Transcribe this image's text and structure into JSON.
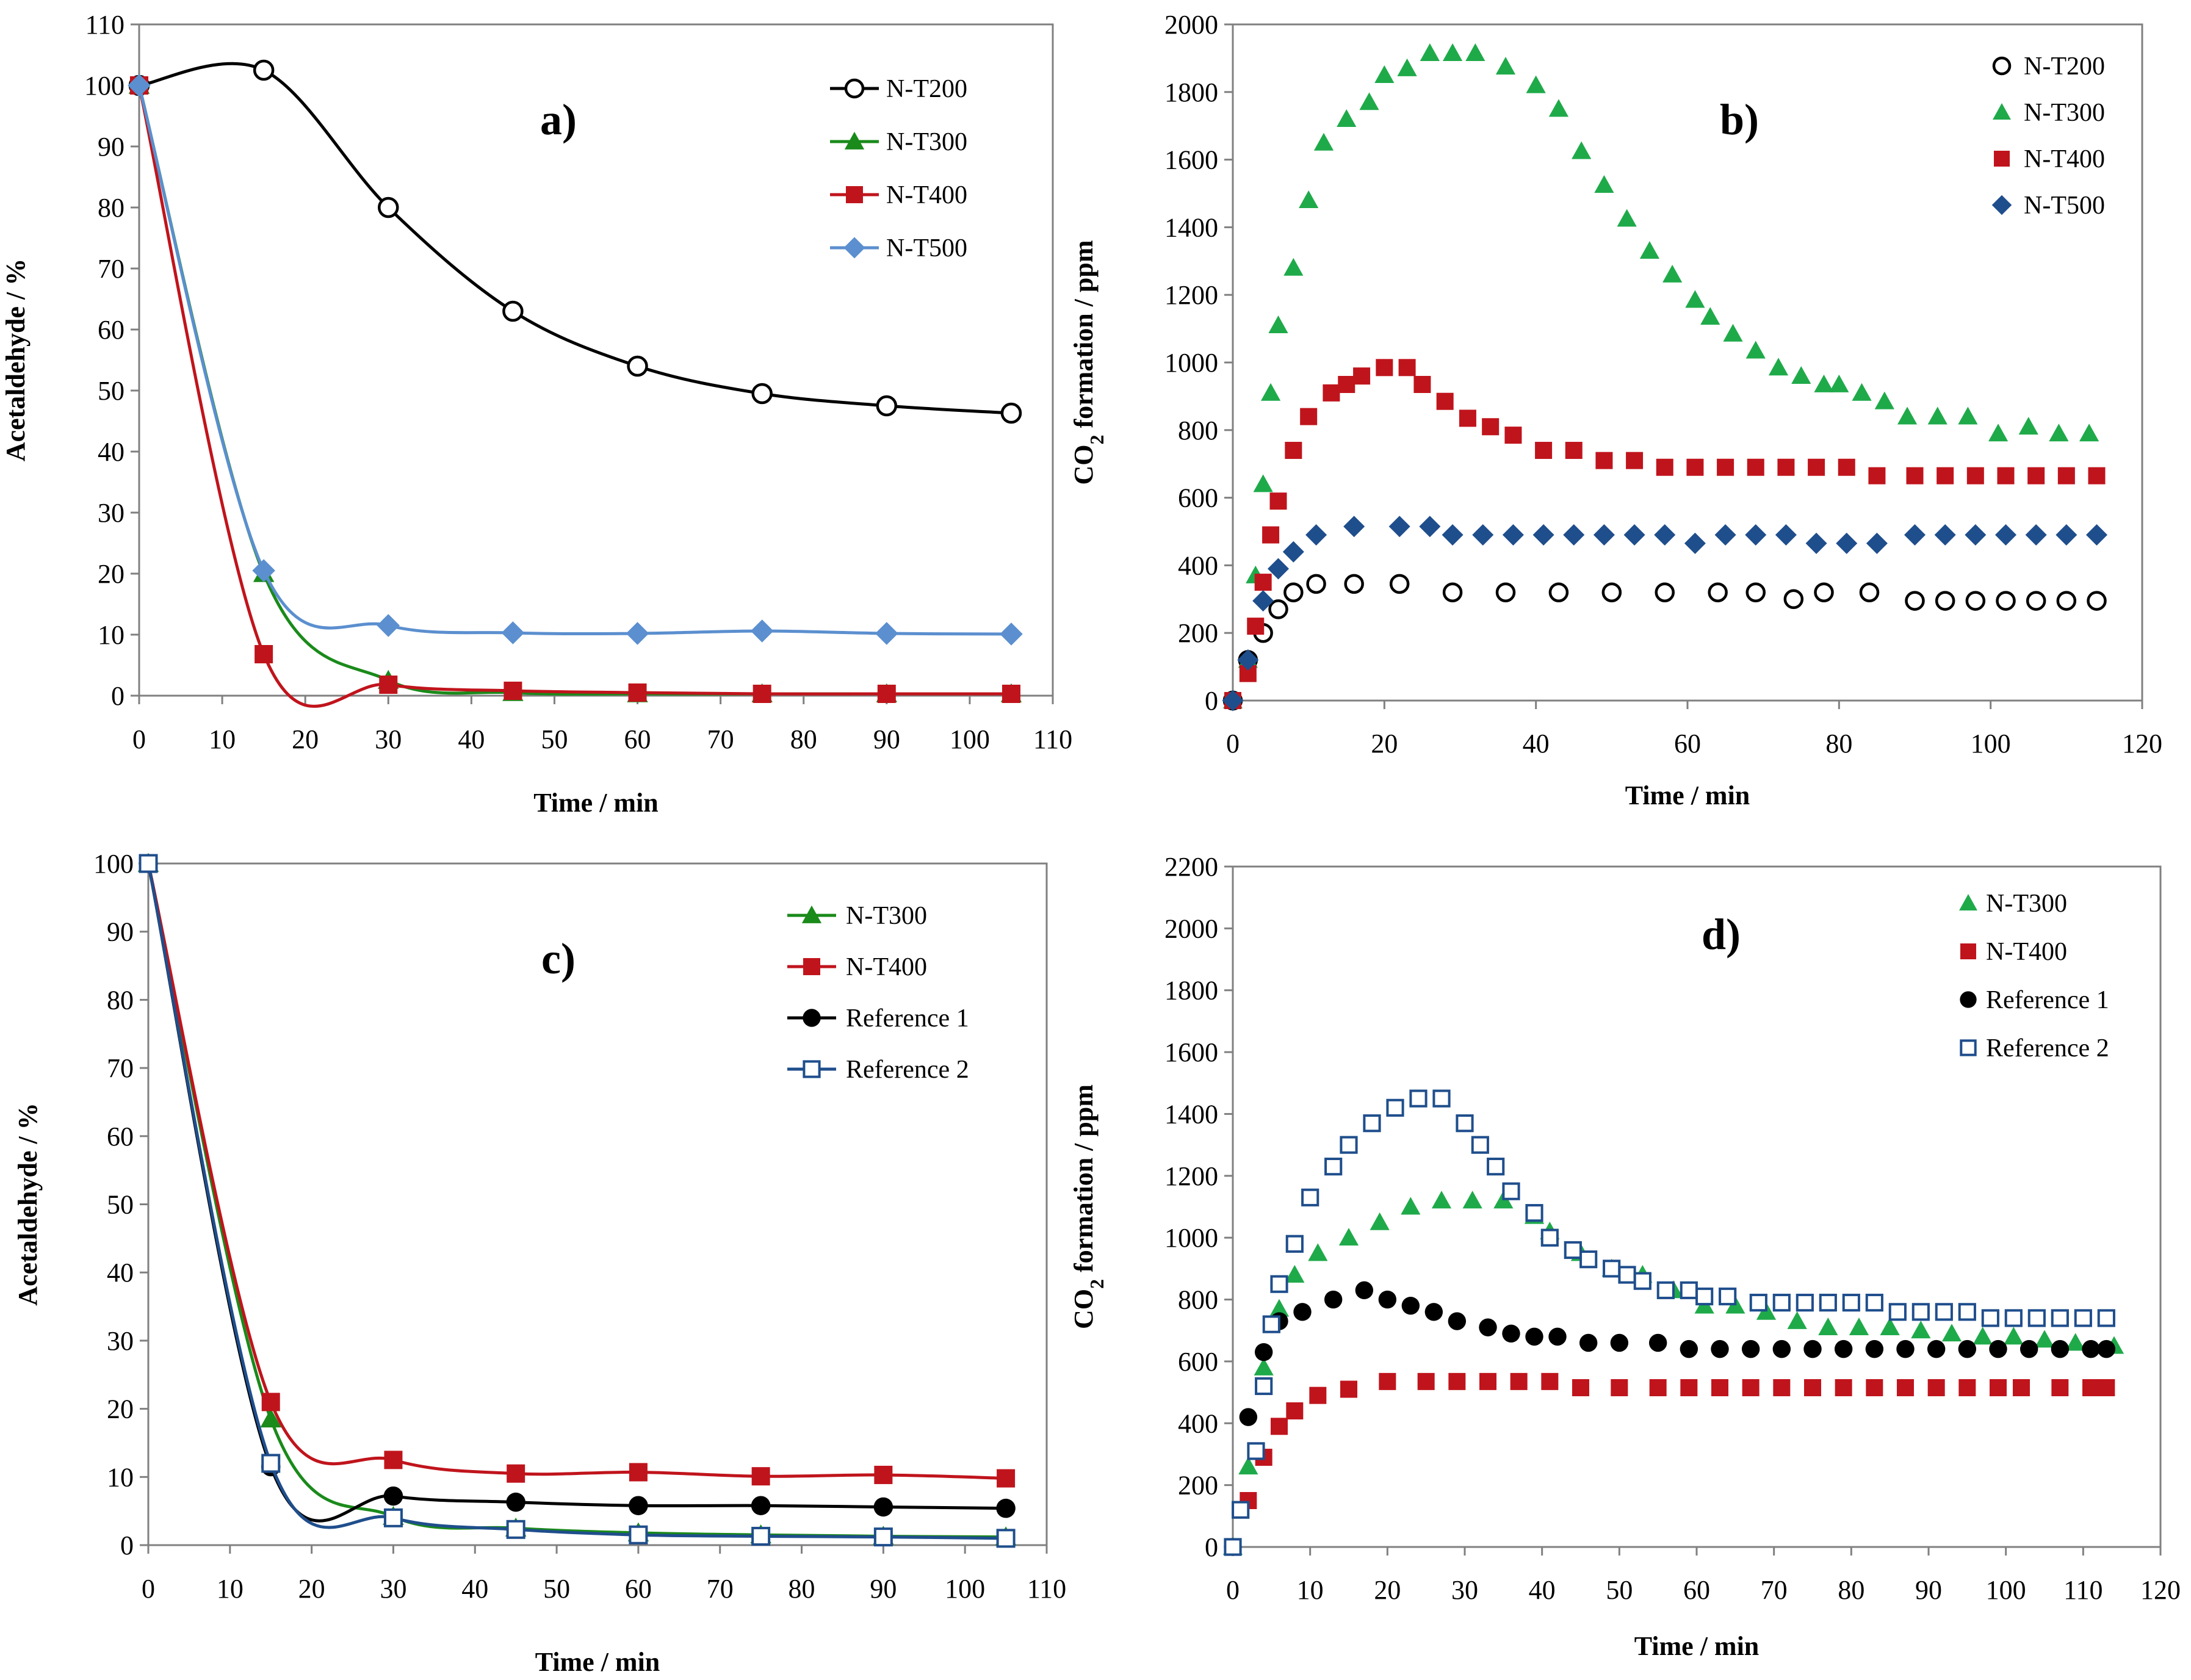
{
  "chart_data": [
    {
      "id": "a",
      "type": "line",
      "panel_label": "a)",
      "xlabel": "Time / min",
      "ylabel": "Acetaldehyde / %",
      "xlim": [
        0,
        110
      ],
      "ylim": [
        0,
        110
      ],
      "xticks": [
        0,
        10,
        20,
        30,
        40,
        50,
        60,
        70,
        80,
        90,
        100,
        110
      ],
      "yticks": [
        0,
        10,
        20,
        30,
        40,
        50,
        60,
        70,
        80,
        90,
        100,
        110
      ],
      "smooth": true,
      "legend_position": "top-right",
      "series": [
        {
          "name": "N-T200",
          "marker": "circle-open",
          "color": "#000000",
          "x": [
            0,
            15,
            30,
            45,
            60,
            75,
            90,
            105
          ],
          "y": [
            100,
            102.5,
            80,
            63,
            54,
            49.5,
            47.5,
            46.3
          ]
        },
        {
          "name": "N-T300",
          "marker": "triangle",
          "color": "#1a8a1a",
          "x": [
            0,
            15,
            30,
            45,
            60,
            75,
            90,
            105
          ],
          "y": [
            100,
            20,
            2.5,
            0.5,
            0.3,
            0.3,
            0.3,
            0.3
          ]
        },
        {
          "name": "N-T400",
          "marker": "square",
          "color": "#c0141c",
          "x": [
            0,
            15,
            30,
            45,
            60,
            75,
            90,
            105
          ],
          "y": [
            100,
            6.8,
            1.8,
            0.8,
            0.5,
            0.3,
            0.3,
            0.3
          ]
        },
        {
          "name": "N-T500",
          "marker": "diamond",
          "color": "#5b8fcf",
          "x": [
            0,
            15,
            30,
            45,
            60,
            75,
            90,
            105
          ],
          "y": [
            100,
            20.5,
            11.5,
            10.3,
            10.2,
            10.6,
            10.2,
            10.1
          ]
        }
      ]
    },
    {
      "id": "b",
      "type": "scatter",
      "panel_label": "b)",
      "xlabel": "Time / min",
      "ylabel": "CO2 formation / ppm",
      "xlim": [
        0,
        120
      ],
      "ylim": [
        0,
        2000
      ],
      "xticks": [
        0,
        20,
        40,
        60,
        80,
        100,
        120
      ],
      "yticks": [
        0,
        200,
        400,
        600,
        800,
        1000,
        1200,
        1400,
        1600,
        1800,
        2000
      ],
      "smooth": false,
      "legend_position": "top-right",
      "series": [
        {
          "name": "N-T200",
          "marker": "circle-open",
          "color": "#000000",
          "x": [
            0,
            2,
            4,
            6,
            8,
            11,
            16,
            22,
            29,
            36,
            43,
            50,
            57,
            64,
            69,
            74,
            78,
            84,
            90,
            94,
            98,
            102,
            106,
            110,
            114
          ],
          "y": [
            0,
            120,
            200,
            270,
            320,
            345,
            345,
            345,
            320,
            320,
            320,
            320,
            320,
            320,
            320,
            300,
            320,
            320,
            295,
            295,
            295,
            295,
            295,
            295,
            295
          ]
        },
        {
          "name": "N-T300",
          "marker": "triangle",
          "color": "#1faa4a",
          "x": [
            0,
            2,
            3,
            4,
            5,
            6,
            8,
            10,
            12,
            15,
            18,
            20,
            23,
            26,
            29,
            32,
            36,
            40,
            43,
            46,
            49,
            52,
            55,
            58,
            61,
            63,
            66,
            69,
            72,
            75,
            78,
            80,
            83,
            86,
            89,
            93,
            97,
            101,
            105,
            109,
            113
          ],
          "y": [
            0,
            120,
            370,
            640,
            910,
            1110,
            1280,
            1480,
            1650,
            1720,
            1770,
            1850,
            1870,
            1915,
            1915,
            1915,
            1875,
            1820,
            1750,
            1625,
            1525,
            1425,
            1330,
            1260,
            1185,
            1135,
            1085,
            1035,
            985,
            960,
            935,
            935,
            910,
            885,
            840,
            840,
            840,
            790,
            810,
            790,
            790
          ]
        },
        {
          "name": "N-T400",
          "marker": "square",
          "color": "#c0141c",
          "x": [
            0,
            2,
            3,
            4,
            5,
            6,
            8,
            10,
            13,
            15,
            17,
            20,
            23,
            25,
            28,
            31,
            34,
            37,
            41,
            45,
            49,
            53,
            57,
            61,
            65,
            69,
            73,
            77,
            81,
            85,
            90,
            94,
            98,
            102,
            106,
            110,
            114
          ],
          "y": [
            0,
            80,
            220,
            350,
            490,
            590,
            740,
            840,
            910,
            935,
            960,
            985,
            985,
            935,
            885,
            835,
            810,
            785,
            740,
            740,
            710,
            710,
            690,
            690,
            690,
            690,
            690,
            690,
            690,
            665,
            665,
            665,
            665,
            665,
            665,
            665,
            665
          ]
        },
        {
          "name": "N-T500",
          "marker": "diamond",
          "color": "#1f4e8c",
          "x": [
            0,
            2,
            4,
            6,
            8,
            11,
            16,
            22,
            26,
            29,
            33,
            37,
            41,
            45,
            49,
            53,
            57,
            61,
            65,
            69,
            73,
            77,
            81,
            85,
            90,
            94,
            98,
            102,
            106,
            110,
            114
          ],
          "y": [
            0,
            120,
            295,
            390,
            440,
            490,
            515,
            515,
            515,
            490,
            490,
            490,
            490,
            490,
            490,
            490,
            490,
            465,
            490,
            490,
            490,
            465,
            465,
            465,
            490,
            490,
            490,
            490,
            490,
            490,
            490
          ]
        }
      ]
    },
    {
      "id": "c",
      "type": "line",
      "panel_label": "c)",
      "xlabel": "Time / min",
      "ylabel": "Acetaldehyde / %",
      "xlim": [
        0,
        110
      ],
      "ylim": [
        0,
        100
      ],
      "xticks": [
        0,
        10,
        20,
        30,
        40,
        50,
        60,
        70,
        80,
        90,
        100,
        110
      ],
      "yticks": [
        0,
        10,
        20,
        30,
        40,
        50,
        60,
        70,
        80,
        90,
        100
      ],
      "smooth": true,
      "legend_position": "top-right",
      "series": [
        {
          "name": "N-T300",
          "marker": "triangle",
          "color": "#1a8a1a",
          "x": [
            0,
            15,
            30,
            45,
            60,
            75,
            90,
            105
          ],
          "y": [
            100,
            18.5,
            4.2,
            2.5,
            1.8,
            1.5,
            1.3,
            1.2
          ]
        },
        {
          "name": "N-T400",
          "marker": "square",
          "color": "#c0141c",
          "x": [
            0,
            15,
            30,
            45,
            60,
            75,
            90,
            105
          ],
          "y": [
            100,
            21,
            12.5,
            10.5,
            10.7,
            10.1,
            10.3,
            9.8
          ]
        },
        {
          "name": "Reference 1",
          "marker": "circle",
          "color": "#000000",
          "x": [
            0,
            15,
            30,
            45,
            60,
            75,
            90,
            105
          ],
          "y": [
            100,
            11.5,
            7.2,
            6.3,
            5.8,
            5.8,
            5.6,
            5.4
          ]
        },
        {
          "name": "Reference 2",
          "marker": "square-open",
          "color": "#1f4e8c",
          "x": [
            0,
            15,
            30,
            45,
            60,
            75,
            90,
            105
          ],
          "y": [
            100,
            12,
            4.0,
            2.3,
            1.5,
            1.3,
            1.2,
            1.0
          ]
        }
      ]
    },
    {
      "id": "d",
      "type": "scatter",
      "panel_label": "d)",
      "xlabel": "Time / min",
      "ylabel": "CO2 formation / ppm",
      "xlim": [
        0,
        120
      ],
      "ylim": [
        0,
        2200
      ],
      "xticks": [
        0,
        10,
        20,
        30,
        40,
        50,
        60,
        70,
        80,
        90,
        100,
        110,
        120
      ],
      "yticks": [
        0,
        200,
        400,
        600,
        800,
        1000,
        1200,
        1400,
        1600,
        1800,
        2000,
        2200
      ],
      "smooth": false,
      "legend_position": "top-right",
      "series": [
        {
          "name": "N-T300",
          "marker": "triangle",
          "color": "#1faa4a",
          "x": [
            0,
            2,
            4,
            6,
            8,
            11,
            15,
            19,
            23,
            27,
            31,
            35,
            39,
            41,
            45,
            49,
            53,
            57,
            61,
            65,
            69,
            73,
            77,
            81,
            85,
            89,
            93,
            97,
            101,
            105,
            109,
            114
          ],
          "y": [
            0,
            260,
            580,
            770,
            880,
            950,
            1000,
            1050,
            1100,
            1120,
            1120,
            1120,
            1070,
            1020,
            950,
            900,
            880,
            830,
            780,
            780,
            760,
            730,
            710,
            710,
            710,
            700,
            690,
            680,
            680,
            670,
            660,
            650
          ]
        },
        {
          "name": "N-T400",
          "marker": "square",
          "color": "#c0141c",
          "x": [
            0,
            2,
            4,
            6,
            8,
            11,
            15,
            20,
            25,
            29,
            33,
            37,
            41,
            45,
            50,
            55,
            59,
            63,
            67,
            71,
            75,
            79,
            83,
            87,
            91,
            95,
            99,
            102,
            107,
            111,
            113
          ],
          "y": [
            0,
            150,
            290,
            390,
            440,
            490,
            510,
            535,
            535,
            535,
            535,
            535,
            535,
            515,
            515,
            515,
            515,
            515,
            515,
            515,
            515,
            515,
            515,
            515,
            515,
            515,
            515,
            515,
            515,
            515,
            515
          ]
        },
        {
          "name": "Reference 1",
          "marker": "circle",
          "color": "#000000",
          "x": [
            0,
            2,
            4,
            6,
            9,
            13,
            17,
            20,
            23,
            26,
            29,
            33,
            36,
            39,
            42,
            46,
            50,
            55,
            59,
            63,
            67,
            71,
            75,
            79,
            83,
            87,
            91,
            95,
            99,
            103,
            107,
            111,
            113
          ],
          "y": [
            0,
            420,
            630,
            730,
            760,
            800,
            830,
            800,
            780,
            760,
            730,
            710,
            690,
            680,
            680,
            660,
            660,
            660,
            640,
            640,
            640,
            640,
            640,
            640,
            640,
            640,
            640,
            640,
            640,
            640,
            640,
            640,
            640
          ]
        },
        {
          "name": "Reference 2",
          "marker": "square-open",
          "color": "#1f4e8c",
          "x": [
            0,
            1,
            3,
            4,
            5,
            6,
            8,
            10,
            13,
            15,
            18,
            21,
            24,
            27,
            30,
            32,
            34,
            36,
            39,
            41,
            44,
            46,
            49,
            51,
            53,
            56,
            59,
            61,
            64,
            68,
            71,
            74,
            77,
            80,
            83,
            86,
            89,
            92,
            95,
            98,
            101,
            104,
            107,
            110,
            113
          ],
          "y": [
            0,
            120,
            310,
            520,
            720,
            850,
            980,
            1130,
            1230,
            1300,
            1370,
            1420,
            1450,
            1450,
            1370,
            1300,
            1230,
            1150,
            1080,
            1000,
            960,
            930,
            900,
            880,
            860,
            830,
            830,
            810,
            810,
            790,
            790,
            790,
            790,
            790,
            790,
            760,
            760,
            760,
            760,
            740,
            740,
            740,
            740,
            740,
            740
          ]
        }
      ]
    }
  ]
}
